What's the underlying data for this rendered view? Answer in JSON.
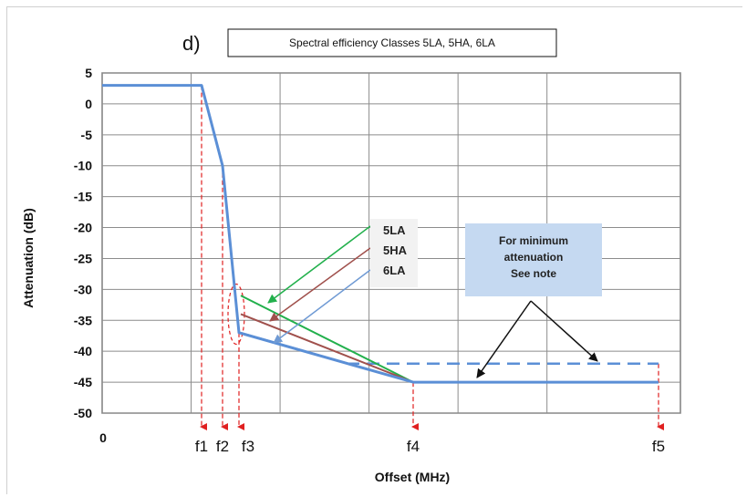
{
  "chart_data": {
    "type": "line",
    "panel_label": "d)",
    "title": "Spectral efficiency Classes  5LA, 5HA, 6LA",
    "xlabel": "Offset (MHz)",
    "ylabel": "Attenuation (dB)",
    "ylim": [
      -50,
      5
    ],
    "y_ticks": [
      5,
      0,
      -5,
      -10,
      -15,
      -20,
      -25,
      -30,
      -35,
      -40,
      -45,
      -50
    ],
    "x_origin_label": "0",
    "x_ticks": [
      "f1",
      "f2",
      "f3",
      "f4",
      "f5"
    ],
    "grid": true,
    "colors": {
      "mask": "#5b8fd6",
      "c5LA": "#22b04c",
      "c5HA": "#a0504c",
      "c6LA": "#6f9ad4",
      "markers": "#e02020",
      "note_box": "#c5d9f1"
    },
    "class_labels": [
      "5LA",
      "5HA",
      "6LA"
    ],
    "note_text": [
      "For minimum",
      "attenuation",
      "See note"
    ],
    "series": [
      {
        "x": [
          "0",
          "f1",
          "f2",
          "f3",
          "f4",
          "f5"
        ],
        "values": [
          3,
          3,
          -10,
          -37,
          -45,
          -45
        ]
      }
    ],
    "dashed_levels": [
      {
        "from": "f3",
        "to": "f5",
        "value": -42
      }
    ],
    "class_segments": [
      {
        "label": "5LA",
        "start_value": -31,
        "end": "f4",
        "end_value": -45
      },
      {
        "label": "5HA",
        "start_value": -34,
        "end": "f4",
        "end_value": -45
      },
      {
        "label": "6LA",
        "start_value": -37,
        "end": "f4",
        "end_value": -45
      }
    ]
  }
}
